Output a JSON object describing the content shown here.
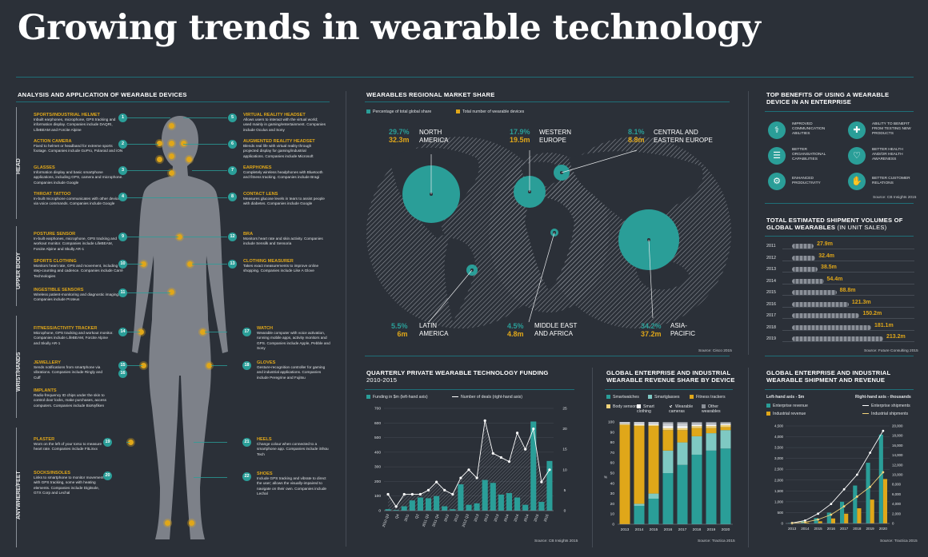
{
  "title": "Growing trends in wearable technology",
  "colors": {
    "teal": "#2a9e98",
    "gold": "#e0a719",
    "bg": "#2b3038"
  },
  "analysis": {
    "header": "ANALYSIS AND APPLICATION OF WEARABLE DEVICES",
    "sections": [
      "HEAD",
      "UPPER BODY",
      "WRIST/HANDS",
      "ANYWHERE/FEET"
    ],
    "devices_left": [
      {
        "n": "1",
        "title": "SPORTS/INDUSTRIAL HELMET",
        "text": "Inbuilt earphones, microphone, GPS tracking and information display. Companies include DAQRI, LifeBEAM and Forcite Alpine"
      },
      {
        "n": "2",
        "title": "ACTION CAMERA",
        "text": "Fixed to helmet or headband for extreme sports footage. Companies include GoPro, Polaroid and iON"
      },
      {
        "n": "3",
        "title": "GLASSES",
        "text": "Information display and basic smartphone applications, including GPS, camera and microphone. Companies include Google"
      },
      {
        "n": "4",
        "title": "THROAT TATTOO",
        "text": "In-built microphone communicates with other devices via voice commands. Companies include Google"
      },
      {
        "n": "9",
        "title": "POSTURE SENSOR",
        "text": "In-built earphones, microphone, GPS tracking and workout monitor. Companies include LifeBEAM, Forcite Alpine and Skully AR-1"
      },
      {
        "n": "10",
        "title": "SPORTS CLOTHING",
        "text": "Monitors heart rate, GPS and movement, including step-counting and cadence. Companies include Carré Technologies"
      },
      {
        "n": "11",
        "title": "INGESTIBLE SENSORS",
        "text": "Wireless patient-monitoring and diagnostic imaging. Companies include Proteus"
      },
      {
        "n": "14",
        "title": "FITNESS/ACTIVITY TRACKER",
        "text": "Microphone, GPS tracking and workout monitor. Companies include LifeBEAM, Forcite Alpine and Skully AR-1"
      },
      {
        "n": "15",
        "title": "JEWELLERY",
        "text": "Sends notifications from smartphone via vibrations. Companies include Ringly and Cuff"
      },
      {
        "n": "16",
        "title": "IMPLANTS",
        "text": "Radio-frequency ID chips under the skin to control door locks, make purchases, access computers. Companies include BioNyfiken"
      },
      {
        "n": "19",
        "title": "PLASTER",
        "text": "Worn on the left of your torso to measure heart rate. Companies include FitLinxx"
      },
      {
        "n": "20",
        "title": "SOCKS/INSOLES",
        "text": "Links to smartphone to monitor movement with GPS tracking, some with heating elements. Companies include Digitsole, GTX Corp and Lechal"
      }
    ],
    "devices_right": [
      {
        "n": "5",
        "title": "VIRTUAL REALITY HEADSET",
        "text": "Allows users to interact with the virtual world; used mainly in gaming/entertainment. Companies include Oculus and Sony"
      },
      {
        "n": "6",
        "title": "AUGMENTED REALITY HEADSET",
        "text": "Blends real life with virtual reality through projected display for gaming/industrial applications. Companies include Microsoft"
      },
      {
        "n": "7",
        "title": "EARPHONES",
        "text": "Completely wireless headphones with Bluetooth and fitness tracking. Companies include Bragi"
      },
      {
        "n": "8",
        "title": "CONTACT LENS",
        "text": "Measures glucose levels in tears to assist people with diabetes. Companies include Google"
      },
      {
        "n": "12",
        "title": "BRA",
        "text": "Monitors heart rate and skin activity. Companies include Sensilk and Sensoria"
      },
      {
        "n": "13",
        "title": "CLOTHING MEASURER",
        "text": "Takes exact measurements to improve online shopping. Companies include Like A Glove"
      },
      {
        "n": "17",
        "title": "WATCH",
        "text": "Wearable computer with voice activation, running mobile apps, activity monitors and GPS. Companies include Apple, Pebble and Sony"
      },
      {
        "n": "18",
        "title": "GLOVES",
        "text": "Gesture-recognition controller for gaming and industrial applications. Companies include Peregrine and Fujitsu"
      },
      {
        "n": "21",
        "title": "HEELS",
        "text": "Change colour when connected to a smartphone app. Companies include iShüu Tech"
      },
      {
        "n": "22",
        "title": "SHOES",
        "text": "Include GPS tracking and vibrate to direct the user; allows the visually-impaired to navigate on their own. Companies include Lechal"
      }
    ]
  },
  "regional": {
    "header": "WEARABLES REGIONAL MARKET SHARE",
    "legend": [
      "Percentage of total global share",
      "Total number of wearable devices"
    ],
    "regions": [
      {
        "pct": "29.7%",
        "num": "32.3m",
        "name1": "NORTH",
        "name2": "AMERICA"
      },
      {
        "pct": "17.9%",
        "num": "19.5m",
        "name1": "WESTERN",
        "name2": "EUROPE"
      },
      {
        "pct": "8.1%",
        "num": "8.8m",
        "name1": "CENTRAL AND",
        "name2": "EASTERN EUROPE"
      },
      {
        "pct": "5.5%",
        "num": "6m",
        "name1": "LATIN",
        "name2": "AMERICA"
      },
      {
        "pct": "4.5%",
        "num": "4.8m",
        "name1": "MIDDLE EAST",
        "name2": "AND AFRICA"
      },
      {
        "pct": "34.2%",
        "num": "37.2m",
        "name1": "ASIA-",
        "name2": "PACIFIC"
      }
    ],
    "source": "Source: Cisco 2015"
  },
  "benefits": {
    "header1": "TOP BENEFITS OF USING A WEARABLE",
    "header2": "DEVICE IN AN ENTERPRISE",
    "items": [
      {
        "icon": "stethoscope-icon",
        "l1": "IMPROVED",
        "l2": "COMMUNICATION",
        "l3": "ABILITIES"
      },
      {
        "icon": "syringe-icon",
        "l1": "ABILITY TO BENEFIT",
        "l2": "FROM TESTING NEW",
        "l3": "PRODUCTS"
      },
      {
        "icon": "document-icon",
        "l1": "BETTER",
        "l2": "ORGANISATIONAL",
        "l3": "CAPABILITIES"
      },
      {
        "icon": "heart-icon",
        "l1": "BETTER HEALTH",
        "l2": "AND/OR HEALTH",
        "l3": "AWARENESS"
      },
      {
        "icon": "gear-icon",
        "l1": "ENHANCED",
        "l2": "PRODUCTIVITY",
        "l3": ""
      },
      {
        "icon": "handshake-icon",
        "l1": "BETTER CUSTOMER",
        "l2": "RELATIONS",
        "l3": ""
      }
    ],
    "source": "Source: CB Insights 2015"
  },
  "shipments": {
    "header1": "TOTAL ESTIMATED SHIPMENT VOLUMES OF",
    "header2": "GLOBAL WEARABLES",
    "header3": " (IN UNIT SALES)",
    "source": "Source: Future Consulting 2015"
  },
  "funding": {
    "header1": "QUARTERLY PRIVATE WEARABLE TECHNOLOGY FUNDING",
    "header2": "2010-2015",
    "legend": [
      "Funding in $m (left-hand axis)",
      "Number of deals (right-hand axis)"
    ],
    "source": "Source: CB Insights 2015"
  },
  "bydevice": {
    "header1": "GLOBAL ENTERPRISE AND INDUSTRIAL",
    "header2": "WEARABLE REVENUE SHARE BY DEVICE",
    "legend": [
      "Smartwatches",
      "Smartglasses",
      "Fitness trackers",
      "Body sensors",
      "Smart clothing",
      "Wearable cameras",
      "Other wearables"
    ],
    "axis_unit": "%",
    "source": "Source: Tractica 2015"
  },
  "shiprev": {
    "header1": "GLOBAL ENTERPRISE AND INDUSTRIAL",
    "header2": "WEARABLE SHIPMENT AND REVENUE",
    "left_axis": "Left-hand axis - $m",
    "right_axis": "Right-hand axis - thousands",
    "legend": [
      "Enterprise revenue",
      "Industrial revenue",
      "Enterprise shipments",
      "Industrial shipments"
    ],
    "source": "Source: Tractica 2015"
  },
  "chart_data": [
    {
      "type": "table",
      "title": "TOTAL ESTIMATED SHIPMENT VOLUMES OF GLOBAL WEARABLES (IN UNIT SALES)",
      "categories": [
        "2011",
        "2012",
        "2013",
        "2014",
        "2015",
        "2016",
        "2017",
        "2018",
        "2019"
      ],
      "values": [
        27.9,
        32.4,
        38.5,
        54.4,
        88.8,
        121.3,
        150.2,
        181.1,
        213.2
      ],
      "labels": [
        "27.9m",
        "32.4m",
        "38.5m",
        "54.4m",
        "88.8m",
        "121.3m",
        "150.2m",
        "181.1m",
        "213.2m"
      ]
    },
    {
      "type": "bar",
      "title": "QUARTERLY PRIVATE WEARABLE TECHNOLOGY FUNDING",
      "categories": [
        "2010 Q3",
        "2010 Q4",
        "2011 Q1",
        "2011 Q2",
        "2011 Q3",
        "2011 Q4",
        "2012 Q1",
        "2012 Q2",
        "2012 Q3",
        "2012 Q4",
        "2013 Q1",
        "2013 Q2",
        "2013 Q3",
        "2013 Q4",
        "2014 Q1",
        "2014 Q2",
        "2014 Q3",
        "2014 Q4",
        "2015 Q1",
        "2015 Q2",
        "2015 Q3"
      ],
      "tick_labels": [
        "2010 Q3",
        "Q4",
        "2011",
        "Q2",
        "2011 Q3",
        "2011 Q4",
        "2012",
        "2012",
        "2012 Q3",
        "2013",
        "2013",
        "2013",
        "2014",
        "2014",
        "2014",
        "2015",
        "2015"
      ],
      "series": [
        {
          "name": "Funding in $m (left-hand axis)",
          "values": [
            10,
            5,
            30,
            70,
            90,
            85,
            100,
            30,
            10,
            180,
            40,
            50,
            210,
            190,
            110,
            120,
            90,
            40,
            610,
            60,
            340
          ]
        },
        {
          "name": "Number of deals (right-hand axis)",
          "values": [
            4,
            1,
            4,
            4,
            4,
            5,
            7,
            5,
            4,
            8,
            10,
            8,
            22,
            14,
            13,
            12,
            19,
            15,
            20,
            7,
            10
          ]
        }
      ],
      "ylim": [
        0,
        700
      ],
      "y2lim": [
        0,
        25
      ]
    },
    {
      "type": "bar",
      "title": "GLOBAL ENTERPRISE AND INDUSTRIAL WEARABLE REVENUE SHARE BY DEVICE",
      "categories": [
        "2013",
        "2014",
        "2015",
        "2016",
        "2017",
        "2018",
        "2019",
        "2020"
      ],
      "series": [
        {
          "name": "Smartwatches",
          "values": [
            0,
            18,
            25,
            50,
            58,
            68,
            72,
            74
          ]
        },
        {
          "name": "Smartglasses",
          "values": [
            0,
            2,
            5,
            22,
            22,
            18,
            17,
            18
          ]
        },
        {
          "name": "Fitness trackers",
          "values": [
            97,
            76,
            66,
            20,
            12,
            8,
            5,
            3
          ]
        },
        {
          "name": "Body sensors",
          "values": [
            1,
            1,
            1,
            2,
            2,
            2,
            2,
            2
          ]
        },
        {
          "name": "Smart clothing",
          "values": [
            0,
            1,
            1,
            2,
            2,
            1,
            1,
            1
          ]
        },
        {
          "name": "Wearable cameras",
          "values": [
            2,
            2,
            2,
            3,
            3,
            2,
            2,
            1
          ]
        },
        {
          "name": "Other wearables",
          "values": [
            0,
            0,
            0,
            1,
            1,
            1,
            1,
            1
          ]
        }
      ],
      "ylabel": "%",
      "ylim": [
        0,
        100
      ]
    },
    {
      "type": "bar",
      "title": "GLOBAL ENTERPRISE AND INDUSTRIAL WEARABLE SHIPMENT AND REVENUE",
      "categories": [
        "2013",
        "2014",
        "2015",
        "2016",
        "2017",
        "2018",
        "2019",
        "2020"
      ],
      "series": [
        {
          "name": "Enterprise revenue",
          "values": [
            20,
            100,
            250,
            500,
            1000,
            1750,
            2800,
            4100
          ]
        },
        {
          "name": "Industrial revenue",
          "values": [
            5,
            40,
            100,
            230,
            450,
            700,
            1100,
            2050
          ]
        },
        {
          "name": "Enterprise shipments",
          "values": [
            100,
            600,
            2000,
            4000,
            7000,
            10000,
            14500,
            19000
          ]
        },
        {
          "name": "Industrial shipments",
          "values": [
            50,
            250,
            800,
            1800,
            3500,
            5500,
            7500,
            10500
          ]
        }
      ],
      "ylim": [
        0,
        4500
      ],
      "y2lim": [
        0,
        20000
      ]
    }
  ]
}
